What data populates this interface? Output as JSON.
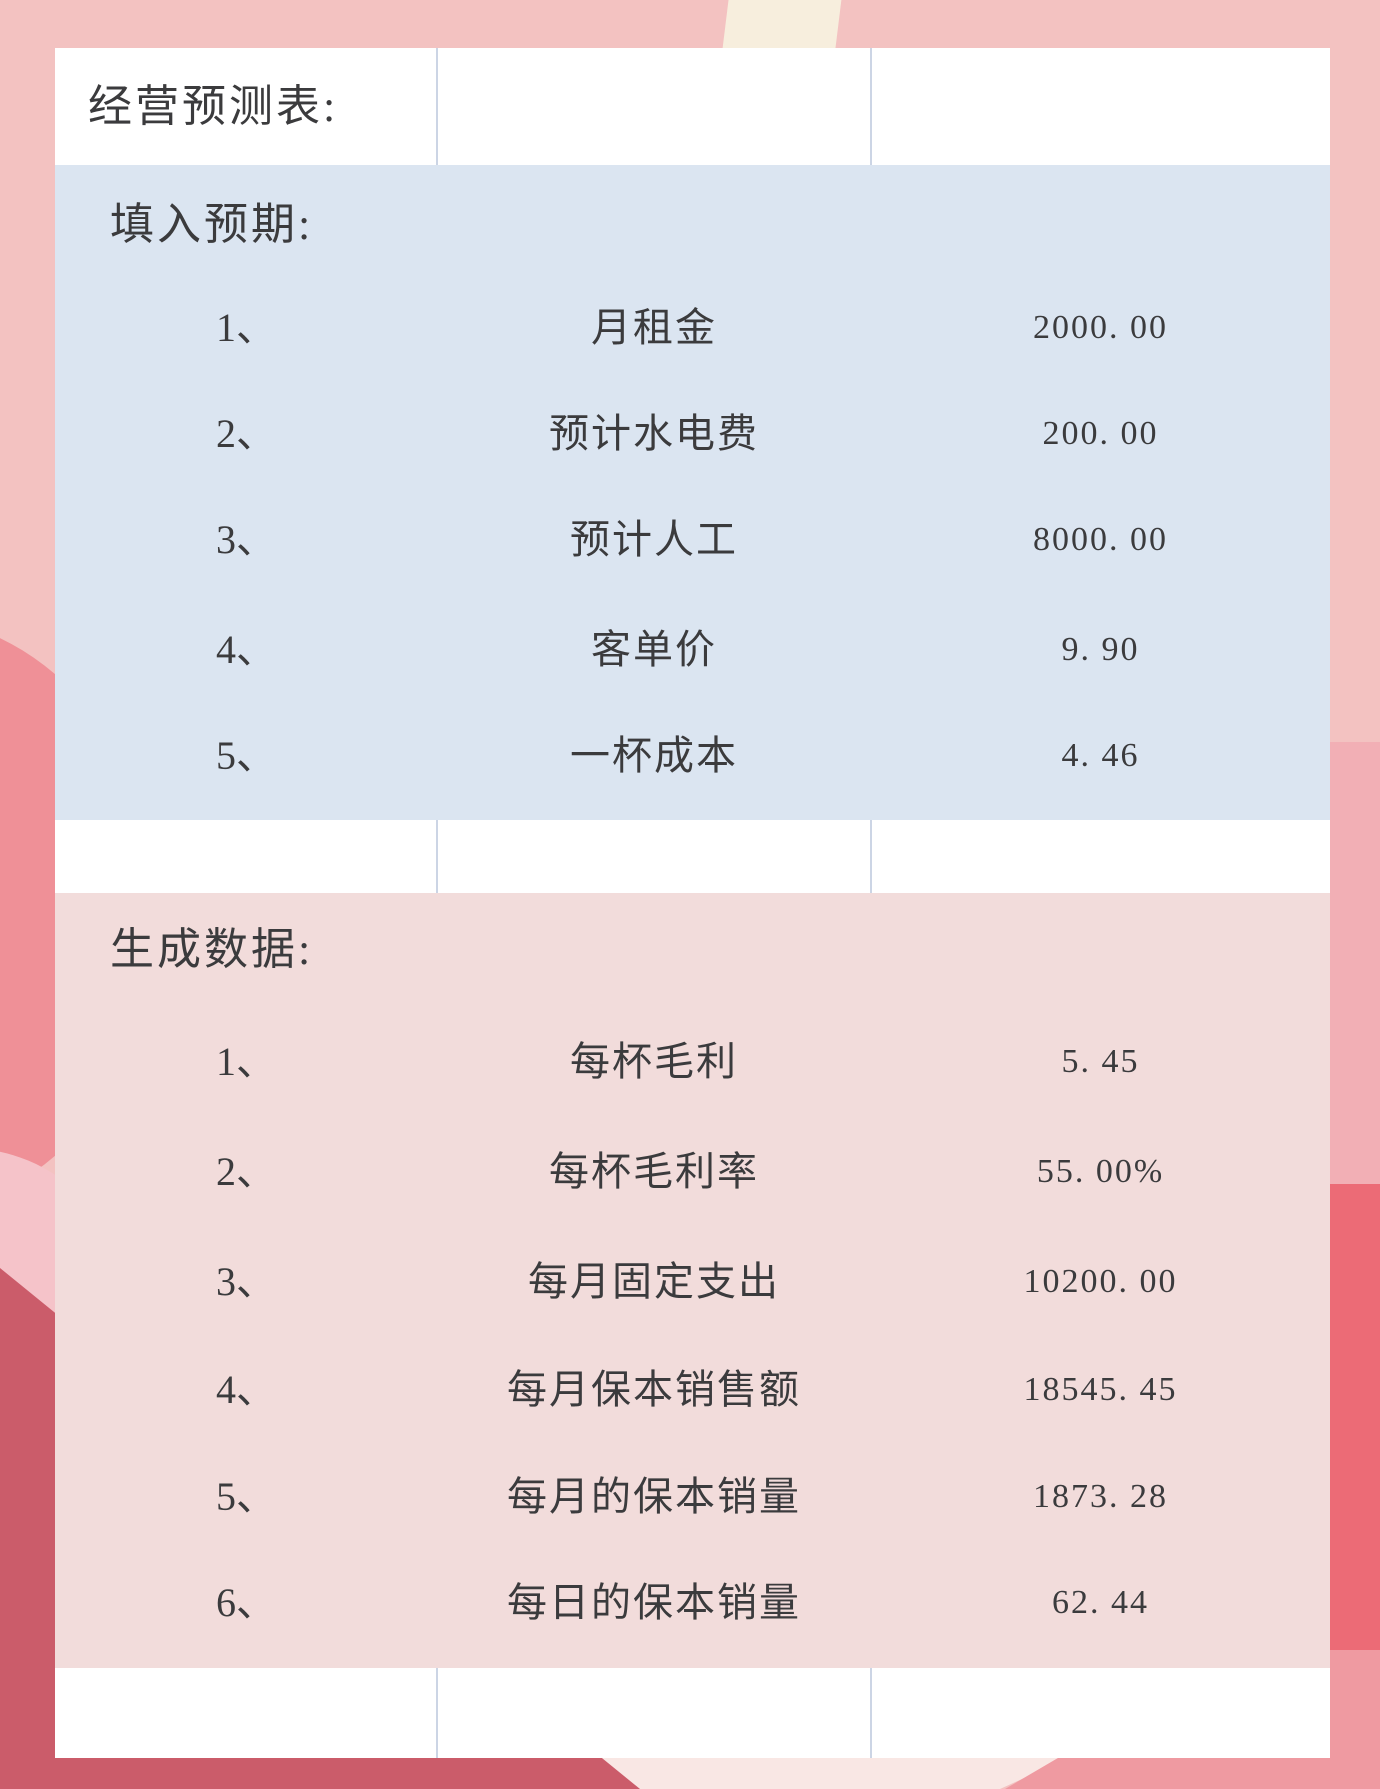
{
  "table": {
    "title": "经营预测表:",
    "sections": [
      {
        "header": "填入预期:",
        "bg_color": "#dbe5f1",
        "rows": [
          {
            "num": "1、",
            "label": "月租金",
            "value": "2000. 00"
          },
          {
            "num": "2、",
            "label": "预计水电费",
            "value": "200. 00"
          },
          {
            "num": "3、",
            "label": "预计人工",
            "value": "8000. 00"
          },
          {
            "num": "4、",
            "label": "客单价",
            "value": "9. 90"
          },
          {
            "num": "5、",
            "label": "一杯成本",
            "value": "4. 46"
          }
        ]
      },
      {
        "header": "生成数据:",
        "bg_color": "#f2dcdb",
        "rows": [
          {
            "num": "1、",
            "label": "每杯毛利",
            "value": "5. 45"
          },
          {
            "num": "2、",
            "label": "每杯毛利率",
            "value": "55. 00%"
          },
          {
            "num": "3、",
            "label": "每月固定支出",
            "value": "10200. 00"
          },
          {
            "num": "4、",
            "label": "每月保本销售额",
            "value": "18545. 45"
          },
          {
            "num": "5、",
            "label": "每月的保本销量",
            "value": "1873. 28"
          },
          {
            "num": "6、",
            "label": "每日的保本销量",
            "value": "62. 44"
          }
        ]
      }
    ]
  },
  "colors": {
    "page_background": "#f3c2c1",
    "blue_section": "#dbe5f1",
    "pink_section": "#f2dcdb",
    "dark_rose_shape": "#cb5c6a",
    "red_block_shape": "#ec6b76",
    "rose_blob_shape": "#ef9097",
    "cream_shape": "#f7eedd",
    "text": "#3b3b3d"
  }
}
